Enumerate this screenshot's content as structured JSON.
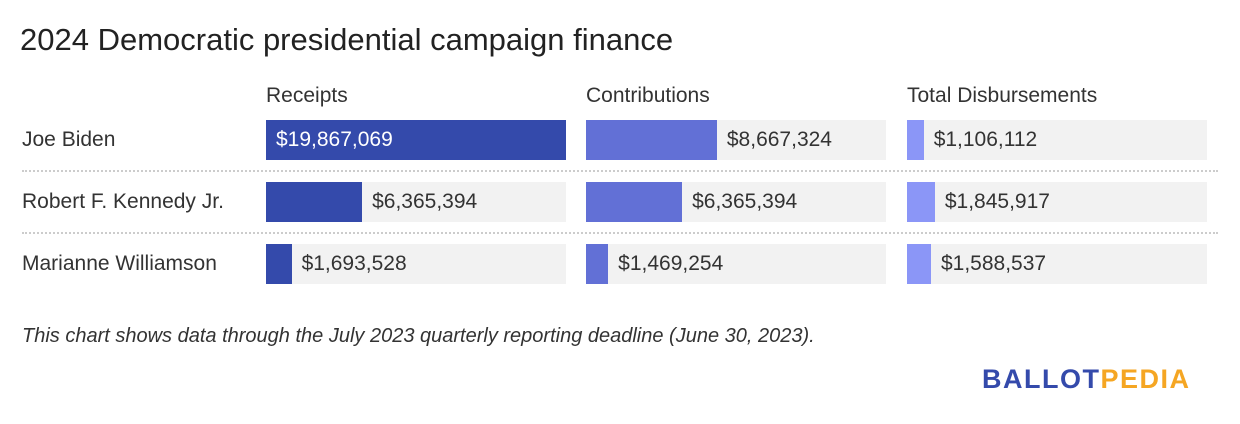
{
  "chart_data": {
    "type": "bar",
    "title": "2024 Democratic presidential campaign finance",
    "categories": [
      "Joe Biden",
      "Robert F. Kennedy Jr.",
      "Marianne Williamson"
    ],
    "series": [
      {
        "name": "Receipts",
        "values": [
          19867069,
          6365394,
          1693528
        ],
        "labels": [
          "$19,867,069",
          "$6,365,394",
          "$1,693,528"
        ],
        "color": "#344aab"
      },
      {
        "name": "Contributions",
        "values": [
          8667324,
          6365394,
          1469254
        ],
        "labels": [
          "$8,667,324",
          "$6,365,394",
          "$1,469,254"
        ],
        "color": "#6270d6"
      },
      {
        "name": "Total Disbursements",
        "values": [
          1106112,
          1845917,
          1588537
        ],
        "labels": [
          "$1,106,112",
          "$1,845,917",
          "$1,588,537"
        ],
        "color": "#8b96f7"
      }
    ],
    "xlim": [
      0,
      19867069
    ],
    "orientation": "horizontal",
    "grid": false,
    "track_color": "#f2f2f2"
  },
  "note": "This chart shows data through the July 2023 quarterly reporting deadline (June 30, 2023).",
  "logo": {
    "part1": "BALLOT",
    "part2": "PEDIA",
    "color1": "#344aab",
    "color2": "#f5a623"
  }
}
